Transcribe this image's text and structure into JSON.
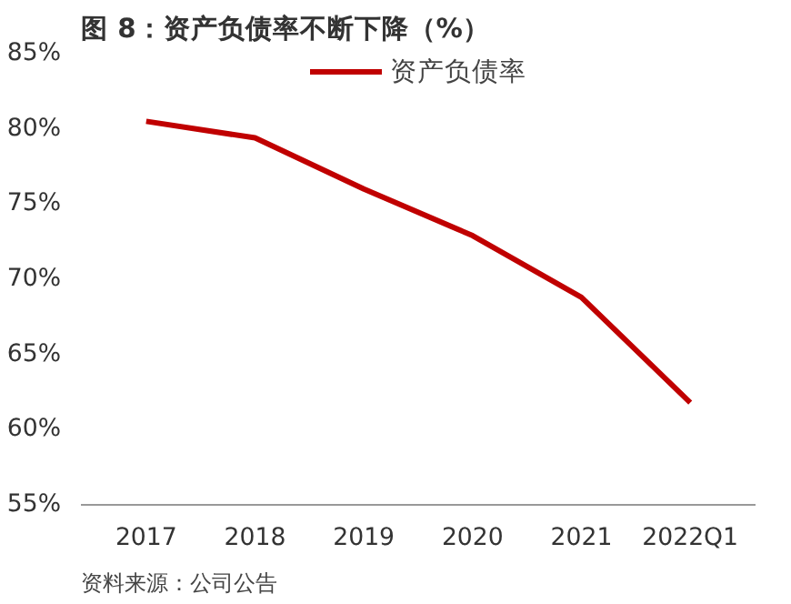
{
  "chart_data": {
    "type": "line",
    "title": "图 8：资产负债率不断下降（%）",
    "categories": [
      "2017",
      "2018",
      "2019",
      "2020",
      "2021",
      "2022Q1"
    ],
    "series": [
      {
        "name": "资产负债率",
        "color": "#c00000",
        "values": [
          80.5,
          79.4,
          76.0,
          72.9,
          68.8,
          61.8
        ]
      }
    ],
    "ylim": [
      55,
      85
    ],
    "yticks": [
      {
        "value": 55,
        "label": "55%"
      },
      {
        "value": 60,
        "label": "60%"
      },
      {
        "value": 65,
        "label": "65%"
      },
      {
        "value": 70,
        "label": "70%"
      },
      {
        "value": 75,
        "label": "75%"
      },
      {
        "value": 80,
        "label": "80%"
      },
      {
        "value": 85,
        "label": "85%"
      }
    ],
    "legend": "top",
    "grid": false,
    "marker": "none",
    "line_style": "solid",
    "annotations": [
      "资料来源：公司公告"
    ]
  }
}
